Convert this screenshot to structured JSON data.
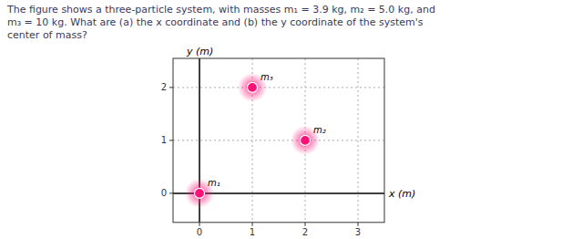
{
  "chart_data": {
    "type": "scatter",
    "annotations": [
      "The figure shows a three-particle system, with masses m₁ = 3.9 kg, m₂ = 5.0 kg, and",
      "m₃ = 10 kg. What are (a) the x coordinate and (b) the y coordinate of the system's",
      "center of mass?"
    ],
    "xlabel": "x (m)",
    "ylabel": "y (m)",
    "series": [
      {
        "name": "m₁",
        "x": [
          0
        ],
        "values": [
          0
        ]
      },
      {
        "name": "m₂",
        "x": [
          2
        ],
        "values": [
          1
        ]
      },
      {
        "name": "m₃",
        "x": [
          1
        ],
        "values": [
          2
        ]
      }
    ],
    "color": "#FF1177",
    "xlim": [
      -0.5,
      3.5
    ],
    "ylim": [
      -0.55,
      2.55
    ],
    "xticks": [
      0,
      1,
      2,
      3
    ],
    "yticks": [
      0,
      1,
      2
    ],
    "grid": true
  }
}
